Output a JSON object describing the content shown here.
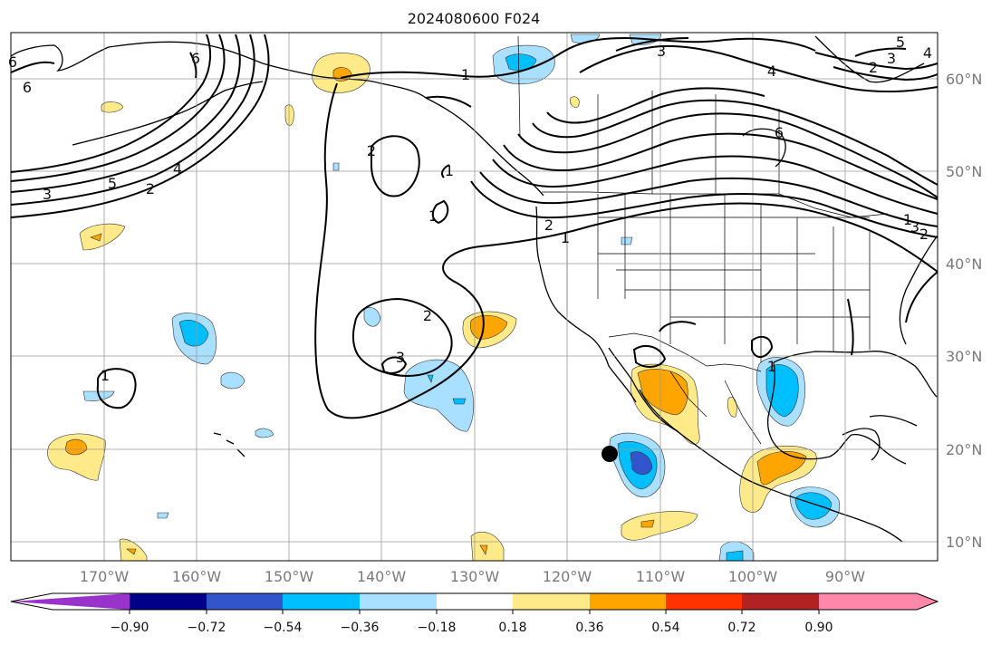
{
  "map": {
    "title": "2024080600 F024",
    "longitude_labels": [
      "170°W",
      "160°W",
      "150°W",
      "140°W",
      "130°W",
      "120°W",
      "110°W",
      "100°W",
      "90°W"
    ],
    "latitude_labels": [
      "60°N",
      "50°N",
      "40°N",
      "30°N",
      "20°N",
      "10°N"
    ],
    "gridlines": true,
    "projection_region": "North Pacific and North America, approx 180°W–80°W, 8°N–65°N",
    "contour_labels": [
      {
        "text": "6"
      },
      {
        "text": "6"
      },
      {
        "text": "6"
      },
      {
        "text": "4"
      },
      {
        "text": "5"
      },
      {
        "text": "3"
      },
      {
        "text": "2"
      },
      {
        "text": "1"
      },
      {
        "text": "2"
      },
      {
        "text": "1"
      },
      {
        "text": "1"
      },
      {
        "text": "2"
      },
      {
        "text": "1"
      },
      {
        "text": "2"
      },
      {
        "text": "3"
      },
      {
        "text": "3"
      },
      {
        "text": "4"
      },
      {
        "text": "6"
      },
      {
        "text": "3"
      },
      {
        "text": "2"
      },
      {
        "text": "1"
      },
      {
        "text": "1"
      },
      {
        "text": "3"
      },
      {
        "text": "2"
      },
      {
        "text": "4"
      },
      {
        "text": "5"
      },
      {
        "text": "1"
      }
    ],
    "marker": {
      "name": "black-dot-marker",
      "color": "#000000"
    }
  },
  "colorbar": {
    "tick_labels": [
      "−0.90",
      "−0.72",
      "−0.54",
      "−0.36",
      "−0.18",
      "0.18",
      "0.36",
      "0.54",
      "0.72",
      "0.90"
    ],
    "bins": [
      {
        "color": "#9933CC"
      },
      {
        "color": "#000088"
      },
      {
        "color": "#3355CC"
      },
      {
        "color": "#00BFFF"
      },
      {
        "color": "#AAE0FF"
      },
      {
        "color": "#FFFFFF"
      },
      {
        "color": "#FFEA8A"
      },
      {
        "color": "#FFA500"
      },
      {
        "color": "#FF3300"
      },
      {
        "color": "#B22222"
      },
      {
        "color": "#FF88AA"
      }
    ],
    "extend": "both"
  }
}
